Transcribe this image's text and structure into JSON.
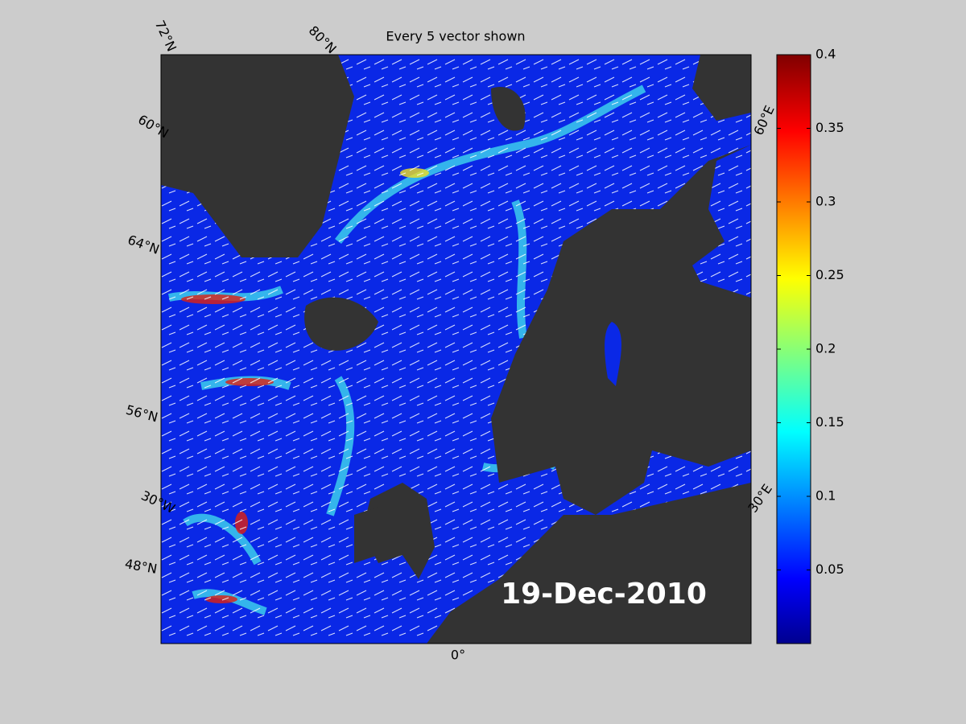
{
  "title": "Every 5 vector shown",
  "date_label": "19-Dec-2010",
  "graticule_labels": [
    "72°N",
    "80°N",
    "60°N",
    "64°N",
    "56°N",
    "30°W",
    "48°N",
    "0°",
    "30°E",
    "60°E"
  ],
  "colorbar": {
    "clim": [
      0,
      0.4
    ],
    "ticks": [
      0.05,
      0.1,
      0.15,
      0.2,
      0.25,
      0.3,
      0.35,
      0.4
    ],
    "colormap": "jet"
  }
}
